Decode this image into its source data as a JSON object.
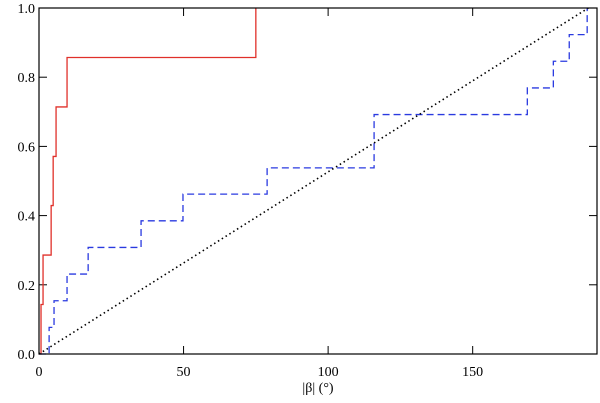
{
  "chart_data": {
    "type": "step",
    "x_label": "|β|  (°)",
    "xlim": [
      0,
      193
    ],
    "ylim": [
      0,
      1
    ],
    "xticks": [
      0,
      50,
      100,
      150
    ],
    "yticks": [
      {
        "value": 0,
        "label": "0.0"
      },
      {
        "value": 0.2,
        "label": "0.2"
      },
      {
        "value": 0.4,
        "label": "0.4"
      },
      {
        "value": 0.6,
        "label": "0.6"
      },
      {
        "value": 0.8,
        "label": "0.8"
      },
      {
        "value": 1,
        "label": "1.0"
      }
    ],
    "series": [
      {
        "color": "#e0302a",
        "dash": "solid",
        "x": [
          0,
          0.7,
          1.4,
          4.2,
          4.9,
          5.9,
          9.7,
          75
        ],
        "values": [
          0,
          0.143,
          0.286,
          0.429,
          0.571,
          0.714,
          0.857,
          1.0
        ]
      },
      {
        "color": "#2a3ae0",
        "dash": "dashed",
        "x": [
          0,
          3.5,
          5.2,
          9.7,
          17,
          35.3,
          49.8,
          78.9,
          115.9,
          168.9,
          177.9,
          183.4,
          189.6
        ],
        "values": [
          0,
          0.077,
          0.154,
          0.231,
          0.308,
          0.385,
          0.462,
          0.538,
          0.692,
          0.769,
          0.846,
          0.923,
          1.0
        ]
      },
      {
        "color": "#000000",
        "dash": "dotted",
        "line": true,
        "x": [
          0,
          190
        ],
        "values": [
          0,
          1
        ]
      }
    ]
  }
}
